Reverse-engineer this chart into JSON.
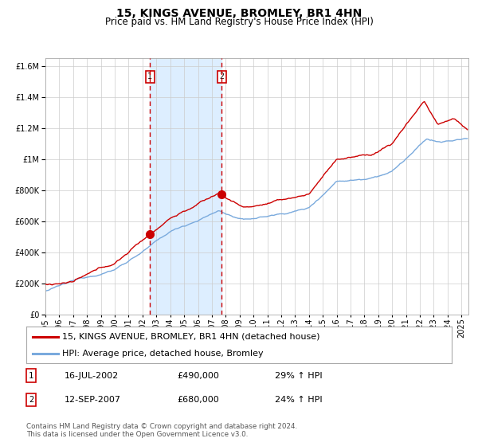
{
  "title": "15, KINGS AVENUE, BROMLEY, BR1 4HN",
  "subtitle": "Price paid vs. HM Land Registry's House Price Index (HPI)",
  "ylim": [
    0,
    1650000
  ],
  "xlim_start": 1995.0,
  "xlim_end": 2025.5,
  "sale1_date": 2002.54,
  "sale1_price": 490000,
  "sale1_date_str": "16-JUL-2002",
  "sale1_hpi_pct": "29%",
  "sale2_date": 2007.71,
  "sale2_price": 680000,
  "sale2_date_str": "12-SEP-2007",
  "sale2_hpi_pct": "24%",
  "line_color_red": "#cc0000",
  "line_color_blue": "#7aaadd",
  "shade_color": "#ddeeff",
  "grid_color": "#cccccc",
  "bg_color": "#ffffff",
  "legend_label_red": "15, KINGS AVENUE, BROMLEY, BR1 4HN (detached house)",
  "legend_label_blue": "HPI: Average price, detached house, Bromley",
  "footer": "Contains HM Land Registry data © Crown copyright and database right 2024.\nThis data is licensed under the Open Government Licence v3.0.",
  "title_fontsize": 10,
  "subtitle_fontsize": 8.5,
  "tick_fontsize": 7,
  "legend_fontsize": 8
}
